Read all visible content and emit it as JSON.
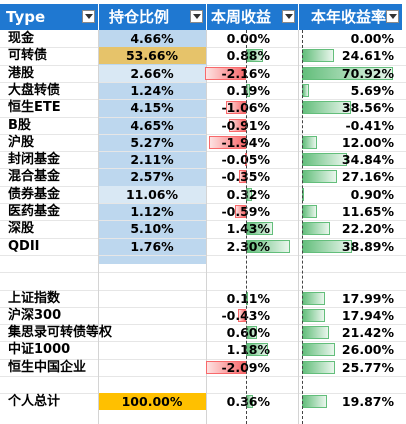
{
  "headers": {
    "type": "Type",
    "position": "持仓比例",
    "week": "本周收益",
    "year": "本年收益率"
  },
  "rows": [
    {
      "name": "现金",
      "pos": "4.66%",
      "pos_v": 4.66,
      "wk": "0.00%",
      "wk_v": 0.0,
      "yr": "0.00%",
      "yr_v": 0.0
    },
    {
      "name": "可转债",
      "pos": "53.66%",
      "pos_v": 53.66,
      "wk": "0.88%",
      "wk_v": 0.88,
      "yr": "24.61%",
      "yr_v": 24.61
    },
    {
      "name": "港股",
      "pos": "2.66%",
      "pos_v": 2.66,
      "wk": "-2.16%",
      "wk_v": -2.16,
      "yr": "70.92%",
      "yr_v": 70.92
    },
    {
      "name": "大盘转债",
      "pos": "1.24%",
      "pos_v": 1.24,
      "wk": "0.19%",
      "wk_v": 0.19,
      "yr": "5.69%",
      "yr_v": 5.69
    },
    {
      "name": "恒生ETE",
      "pos": "4.15%",
      "pos_v": 4.15,
      "wk": "-1.06%",
      "wk_v": -1.06,
      "yr": "38.56%",
      "yr_v": 38.56
    },
    {
      "name": "B股",
      "pos": "4.65%",
      "pos_v": 4.65,
      "wk": "-0.91%",
      "wk_v": -0.91,
      "yr": "-0.41%",
      "yr_v": -0.41
    },
    {
      "name": "沪股",
      "pos": "5.27%",
      "pos_v": 5.27,
      "wk": "-1.94%",
      "wk_v": -1.94,
      "yr": "12.00%",
      "yr_v": 12.0
    },
    {
      "name": "封闭基金",
      "pos": "2.11%",
      "pos_v": 2.11,
      "wk": "-0.05%",
      "wk_v": -0.05,
      "yr": "34.84%",
      "yr_v": 34.84
    },
    {
      "name": "混合基金",
      "pos": "2.57%",
      "pos_v": 2.57,
      "wk": "-0.35%",
      "wk_v": -0.35,
      "yr": "27.16%",
      "yr_v": 27.16
    },
    {
      "name": "债券基金",
      "pos": "11.06%",
      "pos_v": 11.06,
      "wk": "0.32%",
      "wk_v": 0.32,
      "yr": "0.90%",
      "yr_v": 0.9
    },
    {
      "name": "医药基金",
      "pos": "1.12%",
      "pos_v": 1.12,
      "wk": "-0.59%",
      "wk_v": -0.59,
      "yr": "11.65%",
      "yr_v": 11.65
    },
    {
      "name": "深股",
      "pos": "5.10%",
      "pos_v": 5.1,
      "wk": "1.43%",
      "wk_v": 1.43,
      "yr": "22.20%",
      "yr_v": 22.2
    },
    {
      "name": "QDII",
      "pos": "1.76%",
      "pos_v": 1.76,
      "wk": "2.30%",
      "wk_v": 2.3,
      "yr": "38.89%",
      "yr_v": 38.89
    },
    {
      "name": "",
      "pos": "",
      "wk": "",
      "yr": ""
    },
    {
      "name": "",
      "pos": "",
      "wk": "",
      "yr": ""
    },
    {
      "name": "上证指数",
      "pos": "",
      "wk": "0.11%",
      "wk_v": 0.11,
      "yr": "17.99%",
      "yr_v": 17.99
    },
    {
      "name": "沪深300",
      "pos": "",
      "wk": "-0.43%",
      "wk_v": -0.43,
      "yr": "17.94%",
      "yr_v": 17.94
    },
    {
      "name": "集思录可转债等权",
      "pos": "",
      "wk": "0.60%",
      "wk_v": 0.6,
      "yr": "21.42%",
      "yr_v": 21.42
    },
    {
      "name": "中证1000",
      "pos": "",
      "wk": "1.18%",
      "wk_v": 1.18,
      "yr": "26.00%",
      "yr_v": 26.0
    },
    {
      "name": "恒生中国企业",
      "pos": "",
      "wk": "-2.09%",
      "wk_v": -2.09,
      "yr": "25.77%",
      "yr_v": 25.77
    },
    {
      "name": "",
      "pos": "",
      "wk": "",
      "yr": ""
    },
    {
      "name": "个人总计",
      "pos": "100.00%",
      "pos_v": 100,
      "wk": "0.36%",
      "wk_v": 0.36,
      "yr": "19.87%",
      "yr_v": 19.87
    }
  ],
  "colors": {
    "header": "#1f78d1",
    "position_col": "#bdd7ee",
    "highlight_gold": "#e6c36a",
    "highlight_total": "#ffc000",
    "bar_green": "#63be7b",
    "bar_red": "#f8696b"
  },
  "icons": {
    "filter": "dropdown-filter-icon"
  }
}
